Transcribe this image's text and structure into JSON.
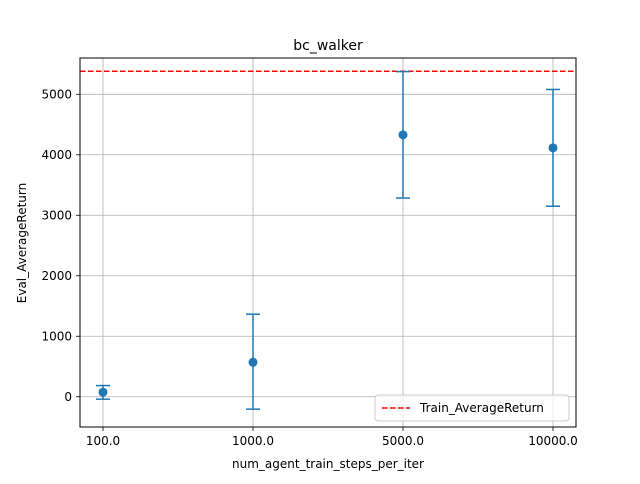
{
  "chart_data": {
    "type": "scatter",
    "title": "bc_walker",
    "xlabel": "num_agent_train_steps_per_iter",
    "ylabel": "Eval_AverageReturn",
    "categories": [
      "100.0",
      "1000.0",
      "5000.0",
      "10000.0"
    ],
    "series": [
      {
        "values": [
          75,
          570,
          4330,
          4115
        ],
        "error_low": [
          -40,
          -205,
          3285,
          3150
        ],
        "error_high": [
          185,
          1365,
          5375,
          5080
        ],
        "color": "#1f77b4",
        "marker": "circle",
        "errorbars": true
      }
    ],
    "reference_lines": [
      {
        "name": "Train_AverageReturn",
        "value": 5380,
        "color": "#ff0000",
        "style": "dashed"
      }
    ],
    "ylim": [
      -500,
      5600
    ],
    "yticks": [
      0,
      1000,
      2000,
      3000,
      4000,
      5000
    ],
    "grid": true,
    "legend_position": "lower right"
  }
}
